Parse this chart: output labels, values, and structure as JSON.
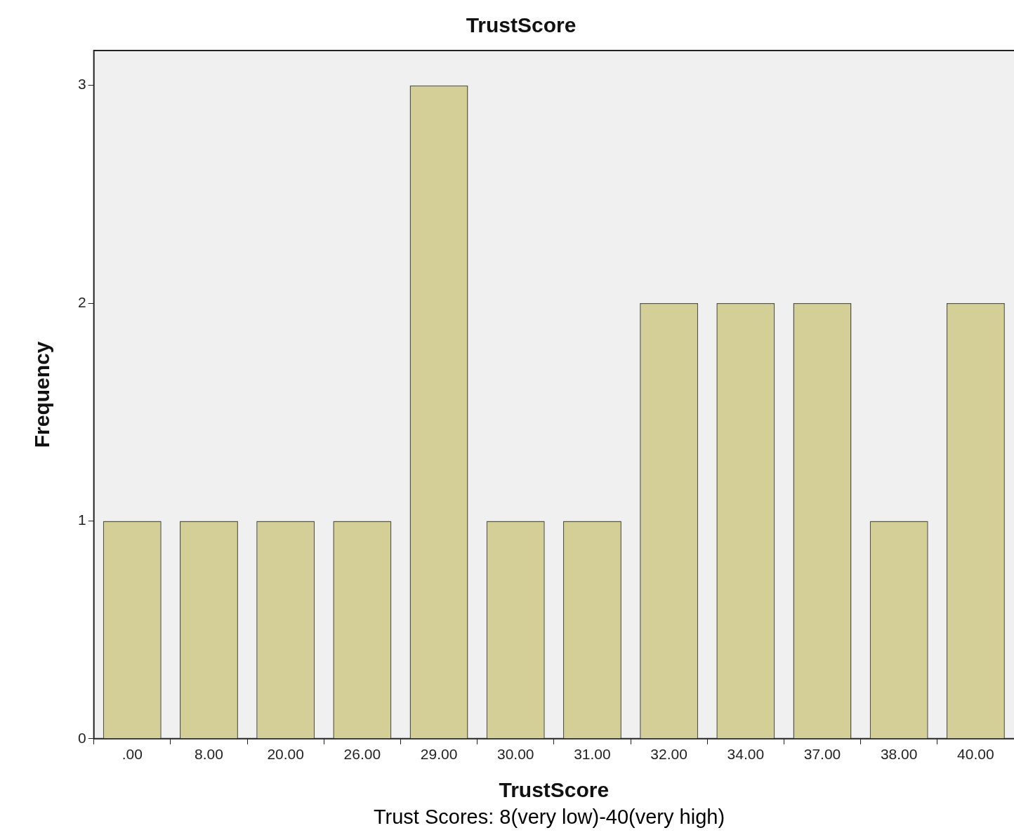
{
  "chart_data": {
    "type": "bar",
    "title": "TrustScore",
    "xlabel": "TrustScore",
    "ylabel": "Frequency",
    "annotations": [
      "Trust Scores: 8(very low)-40(very high)"
    ],
    "categories": [
      ".00",
      "8.00",
      "20.00",
      "26.00",
      "29.00",
      "30.00",
      "31.00",
      "32.00",
      "34.00",
      "37.00",
      "38.00",
      "40.00"
    ],
    "values": [
      1,
      1,
      1,
      1,
      3,
      1,
      1,
      2,
      2,
      2,
      1,
      2
    ],
    "color": "#d4cf96",
    "ylim": [
      0,
      3.16
    ],
    "yticks": [
      0,
      1,
      2,
      3
    ],
    "grid": false,
    "legend": false
  }
}
